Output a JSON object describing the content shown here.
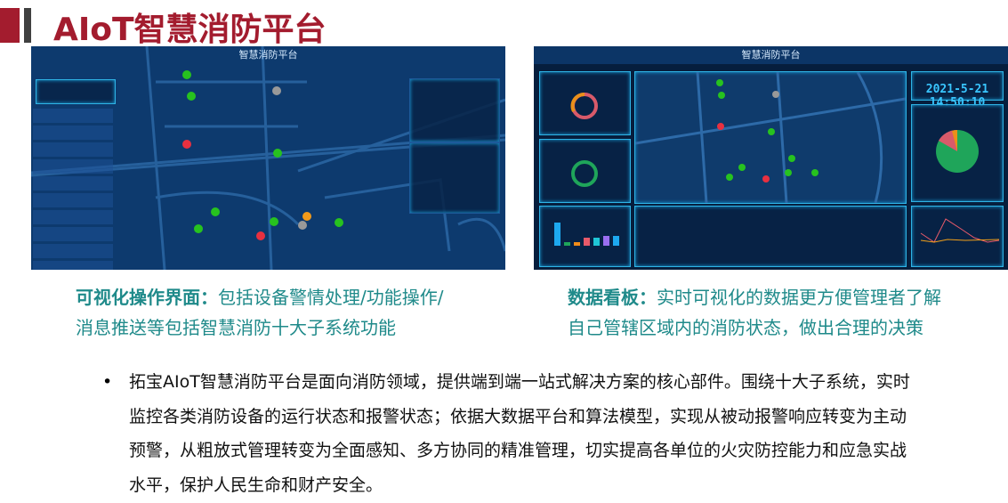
{
  "title": "AIoT智慧消防平台",
  "left_screenshot": {
    "header": "智慧消防平台"
  },
  "right_screenshot": {
    "header": "智慧消防平台",
    "clock": "2021-5-21 14:50:10"
  },
  "captions": [
    {
      "label": "可视化操作界面：",
      "text_line1": "包括设备警情处理/功能操作/",
      "text_line2": "消息推送等包括智慧消防十大子系统功能"
    },
    {
      "label": "数据看板：",
      "text_line1": "实时可视化的数据更方便管理者了解",
      "text_line2": "自己管辖区域内的消防状态，做出合理的决策"
    }
  ],
  "bullet": {
    "symbol": "•",
    "text": "拓宝AIoT智慧消防平台是面向消防领域，提供端到端一站式解决方案的核心部件。围绕十大子系统，实时监控各类消防设备的运行状态和报警状态；依据大数据平台和算法模型，实现从被动报警响应转变为主动预警，从粗放式管理转变为全面感知、多方协同的精准管理，切实提高各单位的火灾防控能力和应急实战水平，保护人民生命和财产安全。"
  },
  "colors": {
    "title": "#a31c2e",
    "caption": "#1f8a8a",
    "screen_bg": "#0d3a6e"
  }
}
